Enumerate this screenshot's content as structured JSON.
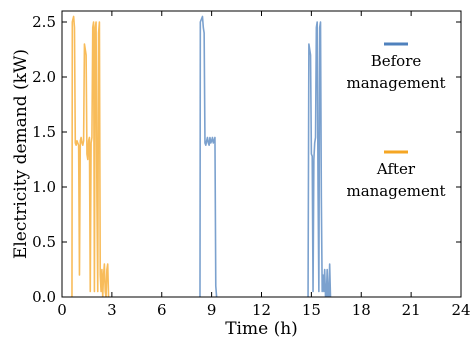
{
  "chart_data": {
    "type": "line",
    "xlabel": "Time (h)",
    "ylabel": "Electricity demand (kW)",
    "xlim": [
      0,
      24
    ],
    "ylim": [
      0,
      2.6
    ],
    "xticks": [
      0,
      3,
      6,
      9,
      12,
      15,
      18,
      21,
      24
    ],
    "yticks": [
      0.0,
      0.5,
      1.0,
      1.5,
      2.0,
      2.5
    ],
    "xtick_labels": [
      "0",
      "3",
      "6",
      "9",
      "12",
      "15",
      "18",
      "21",
      "24"
    ],
    "ytick_labels": [
      "0.0",
      "0.5",
      "1.0",
      "1.5",
      "2.0",
      "2.5"
    ],
    "grid": false,
    "legend_position": "right",
    "series": [
      {
        "name": "Before management",
        "color": "#4f81bd",
        "segments": [
          {
            "x": [
              8.3,
              8.32,
              8.45,
              8.5,
              8.55,
              8.6,
              8.65,
              8.7,
              8.75,
              8.8,
              8.85,
              8.9,
              8.95,
              9.0,
              9.05,
              9.1,
              9.15,
              9.2,
              9.25,
              9.3
            ],
            "y": [
              0.0,
              2.5,
              2.55,
              2.45,
              2.4,
              1.4,
              1.38,
              1.42,
              1.45,
              1.4,
              1.38,
              1.45,
              1.4,
              1.42,
              1.45,
              1.4,
              1.42,
              1.45,
              0.1,
              0.0
            ]
          },
          {
            "x": [
              14.8,
              14.85,
              14.9,
              14.95,
              15.0,
              15.05,
              15.1,
              15.15,
              15.2,
              15.25,
              15.3,
              15.35,
              15.4,
              15.45,
              15.5,
              15.55,
              15.6,
              15.65,
              15.7,
              15.75,
              15.8,
              15.85,
              15.9,
              15.95,
              16.0,
              16.05,
              16.1,
              16.15
            ],
            "y": [
              0.0,
              2.3,
              2.25,
              2.2,
              1.3,
              1.28,
              0.05,
              1.25,
              1.4,
              1.45,
              2.45,
              2.5,
              1.0,
              0.05,
              2.45,
              2.5,
              0.9,
              0.05,
              0.2,
              0.05,
              0.25,
              0.0,
              0.0,
              0.25,
              0.0,
              0.0,
              0.3,
              0.0
            ]
          }
        ]
      },
      {
        "name": "After management",
        "color": "#f5a623",
        "segments": [
          {
            "x": [
              0.6,
              0.62,
              0.7,
              0.75,
              0.8,
              0.85,
              0.9,
              0.95,
              1.0,
              1.05,
              1.1,
              1.15,
              1.2,
              1.25,
              1.3,
              1.35,
              1.4,
              1.45,
              1.5,
              1.55,
              1.6,
              1.65,
              1.7,
              1.75,
              1.8,
              1.85,
              1.9,
              1.95,
              2.0,
              2.05,
              2.1,
              2.15,
              2.2,
              2.25,
              2.3,
              2.35,
              2.4,
              2.45,
              2.5,
              2.55,
              2.6,
              2.65,
              2.7,
              2.75,
              2.8
            ],
            "y": [
              0.0,
              2.5,
              2.55,
              2.45,
              1.4,
              1.38,
              1.42,
              1.4,
              1.38,
              0.2,
              1.42,
              1.45,
              1.4,
              1.38,
              1.42,
              2.3,
              2.25,
              2.2,
              1.3,
              1.25,
              1.42,
              1.45,
              0.05,
              1.4,
              1.45,
              2.45,
              2.5,
              0.05,
              2.45,
              2.5,
              0.9,
              0.05,
              2.4,
              2.5,
              0.2,
              0.05,
              0.25,
              0.0,
              0.2,
              0.3,
              0.05,
              0.0,
              0.25,
              0.3,
              0.0
            ]
          }
        ]
      }
    ]
  }
}
